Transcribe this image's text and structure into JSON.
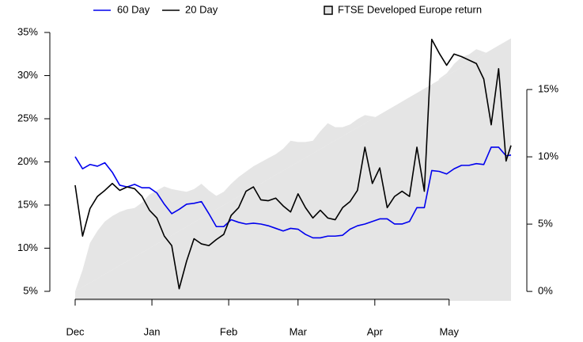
{
  "chart_data": {
    "type": "line",
    "x": [
      0,
      3,
      6,
      9,
      12,
      15,
      18,
      21,
      24,
      27,
      30,
      33,
      36,
      39,
      42,
      45,
      48,
      51,
      54,
      57,
      60,
      63,
      66,
      69,
      72,
      75,
      78,
      81,
      84,
      87,
      90,
      93,
      96,
      99,
      102,
      105,
      108,
      111,
      114,
      117,
      120,
      123,
      126,
      129,
      132,
      135,
      138,
      141,
      144,
      147,
      150,
      153,
      156,
      159,
      162,
      165,
      168,
      171,
      174,
      176
    ],
    "xlim": [
      0,
      176
    ],
    "xticks": [
      {
        "value": 0,
        "label": "Dec"
      },
      {
        "value": 31,
        "label": "Jan"
      },
      {
        "value": 62,
        "label": "Feb"
      },
      {
        "value": 90,
        "label": "Mar"
      },
      {
        "value": 121,
        "label": "Apr"
      },
      {
        "value": 151,
        "label": "May"
      }
    ],
    "ylim": [
      3.9,
      35
    ],
    "yticks": [
      {
        "value": 5,
        "label": "5%"
      },
      {
        "value": 10,
        "label": "10%"
      },
      {
        "value": 15,
        "label": "15%"
      },
      {
        "value": 20,
        "label": "20%"
      },
      {
        "value": 25,
        "label": "25%"
      },
      {
        "value": 30,
        "label": "30%"
      },
      {
        "value": 35,
        "label": "35%"
      }
    ],
    "y2lim": [
      -0.7,
      19.24
    ],
    "y2ticks": [
      {
        "value": 0,
        "label": "0%"
      },
      {
        "value": 5,
        "label": "5%"
      },
      {
        "value": 10,
        "label": "10%"
      },
      {
        "value": 15,
        "label": "15%"
      }
    ],
    "series": [
      {
        "name": "FTSE Developed Europe return",
        "color": "#e5e5e5",
        "axis": "y2",
        "type": "area",
        "values": [
          0,
          1.6,
          3.6,
          4.5,
          5.2,
          5.6,
          5.9,
          6.1,
          6.2,
          6.6,
          7.2,
          7.5,
          7.8,
          7.6,
          7.5,
          7.4,
          7.6,
          8.0,
          7.5,
          7.1,
          7.4,
          8.0,
          8.5,
          8.9,
          9.3,
          9.6,
          9.9,
          10.2,
          10.6,
          11.2,
          11.1,
          11.1,
          11.2,
          11.9,
          12.5,
          12.2,
          12.2,
          12.4,
          12.8,
          13.1,
          13.0,
          12.9,
          12.9,
          12.8,
          12.7,
          12.2,
          11.8,
          13.5,
          14.6,
          15.8,
          16.2,
          16.9,
          17.4,
          17.6,
          18.0,
          17.8,
          17.6,
          17.5,
          18.4,
          18.8
        ]
      },
      {
        "name": "60 Day",
        "color": "#0000ee",
        "values": [
          20.6,
          19.2,
          19.7,
          19.5,
          19.9,
          18.8,
          17.3,
          17.1,
          17.4,
          17.0,
          17.0,
          16.4,
          15.1,
          14.0,
          14.5,
          15.1,
          15.2,
          15.4,
          14.0,
          12.5,
          12.5,
          13.3,
          13.0,
          12.8,
          12.9,
          12.8,
          12.6,
          12.3,
          12.0,
          12.3,
          12.2,
          11.6,
          11.2,
          11.2,
          11.4,
          11.4,
          11.5,
          12.2,
          12.6,
          12.8,
          13.1,
          13.4,
          13.4,
          12.8,
          12.8,
          13.1,
          14.7,
          14.7,
          19.0,
          18.9,
          18.6,
          19.2,
          19.6,
          19.6,
          19.8,
          19.7,
          21.7,
          21.7,
          20.7,
          20.8
        ]
      },
      {
        "name": "20 Day",
        "color": "#000000",
        "values": [
          17.3,
          11.4,
          14.6,
          16.0,
          16.7,
          17.5,
          16.7,
          17.1,
          16.9,
          16.0,
          14.4,
          13.5,
          11.4,
          10.3,
          5.3,
          8.5,
          11.1,
          10.5,
          10.3,
          11.0,
          11.6,
          13.8,
          14.7,
          16.6,
          17.1,
          15.6,
          15.5,
          15.8,
          14.9,
          14.2,
          16.3,
          14.7,
          13.5,
          14.4,
          13.5,
          13.3,
          14.7,
          15.4,
          16.7,
          21.7,
          17.5,
          19.3,
          14.7,
          16.0,
          16.6,
          16.0,
          21.7,
          16.6,
          34.2,
          32.6,
          31.2,
          32.5,
          32.2,
          31.8,
          31.4,
          29.6,
          24.3,
          30.8,
          20.1,
          21.9
        ]
      }
    ]
  }
}
